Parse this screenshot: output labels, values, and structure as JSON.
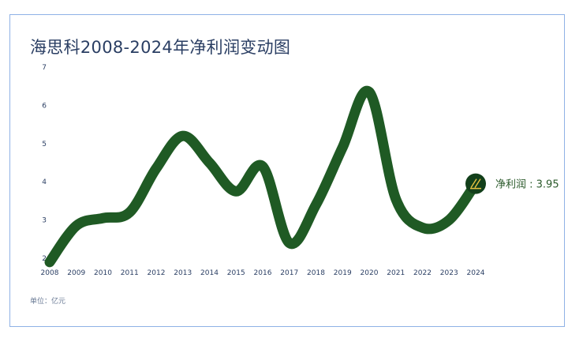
{
  "chart_data": {
    "type": "line",
    "title": "海思科2008-2024年净利润变动图",
    "unit_note": "单位：亿元",
    "x": [
      "2008",
      "2009",
      "2010",
      "2011",
      "2012",
      "2013",
      "2014",
      "2015",
      "2016",
      "2017",
      "2018",
      "2019",
      "2020",
      "2021",
      "2022",
      "2023",
      "2024"
    ],
    "y_ticks": [
      "2",
      "3",
      "4",
      "5",
      "6",
      "7"
    ],
    "ylim": [
      2,
      7
    ],
    "series": [
      {
        "name": "净利润",
        "color": "#1f5a24",
        "values": [
          1.9,
          2.85,
          3.05,
          3.2,
          4.35,
          5.2,
          4.5,
          3.75,
          4.4,
          2.4,
          3.4,
          4.9,
          6.35,
          3.55,
          2.8,
          3.0,
          3.95
        ]
      }
    ],
    "end_label": "净利润 : 3.95",
    "grid": false
  }
}
